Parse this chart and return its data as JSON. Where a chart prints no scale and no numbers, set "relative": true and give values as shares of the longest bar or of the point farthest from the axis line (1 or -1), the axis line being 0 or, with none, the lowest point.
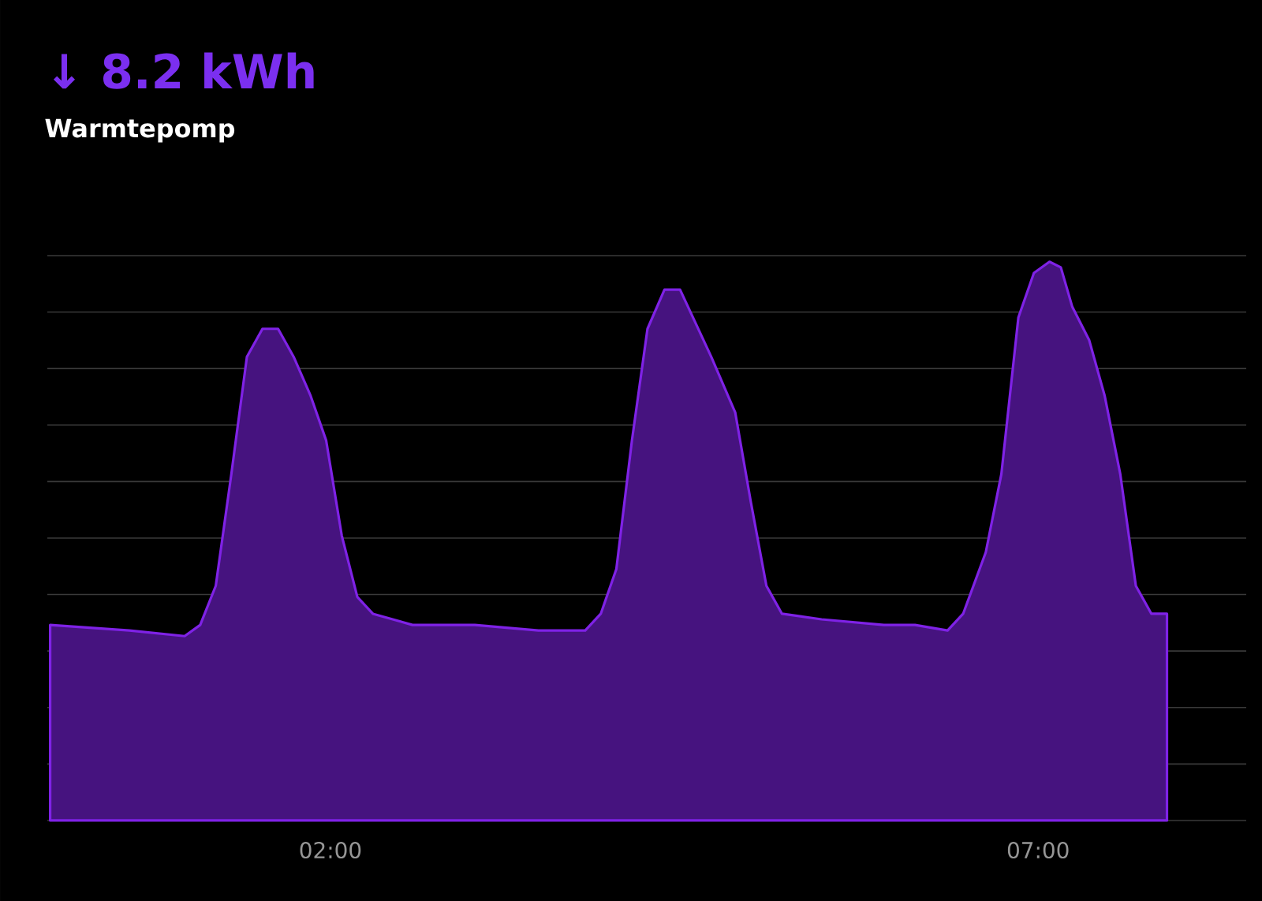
{
  "chart_data": {
    "type": "area",
    "title": "↓ 8.2 kWh",
    "subtitle": "Warmtepomp",
    "relative": true,
    "grid": "y",
    "x": [
      0.02,
      0.58,
      0.97,
      1.08,
      1.19,
      1.3,
      1.41,
      1.52,
      1.63,
      1.74,
      1.86,
      1.97,
      2.08,
      2.19,
      2.3,
      2.58,
      3.02,
      3.47,
      3.8,
      3.91,
      4.02,
      4.13,
      4.24,
      4.36,
      4.47,
      4.58,
      4.69,
      4.86,
      4.97,
      5.08,
      5.19,
      5.47,
      5.91,
      6.13,
      6.36,
      6.47,
      6.63,
      6.74,
      6.86,
      6.97,
      7.08,
      7.16,
      7.24,
      7.36,
      7.47,
      7.58,
      7.69,
      7.8,
      7.91
    ],
    "series": [
      {
        "color": "#7f22e6",
        "values": [
          0.35,
          0.34,
          0.33,
          0.35,
          0.42,
          0.62,
          0.83,
          0.88,
          0.88,
          0.83,
          0.76,
          0.68,
          0.51,
          0.4,
          0.37,
          0.35,
          0.35,
          0.34,
          0.34,
          0.37,
          0.45,
          0.68,
          0.88,
          0.95,
          0.95,
          0.89,
          0.83,
          0.73,
          0.57,
          0.42,
          0.37,
          0.36,
          0.35,
          0.35,
          0.34,
          0.37,
          0.48,
          0.62,
          0.9,
          0.98,
          1.0,
          0.99,
          0.92,
          0.86,
          0.76,
          0.62,
          0.42,
          0.37,
          0.37
        ]
      }
    ],
    "xlim": [
      0.0,
      8.47
    ],
    "xticks": [
      {
        "value": 2,
        "label": "02:00"
      },
      {
        "value": 7,
        "label": "07:00"
      }
    ]
  }
}
